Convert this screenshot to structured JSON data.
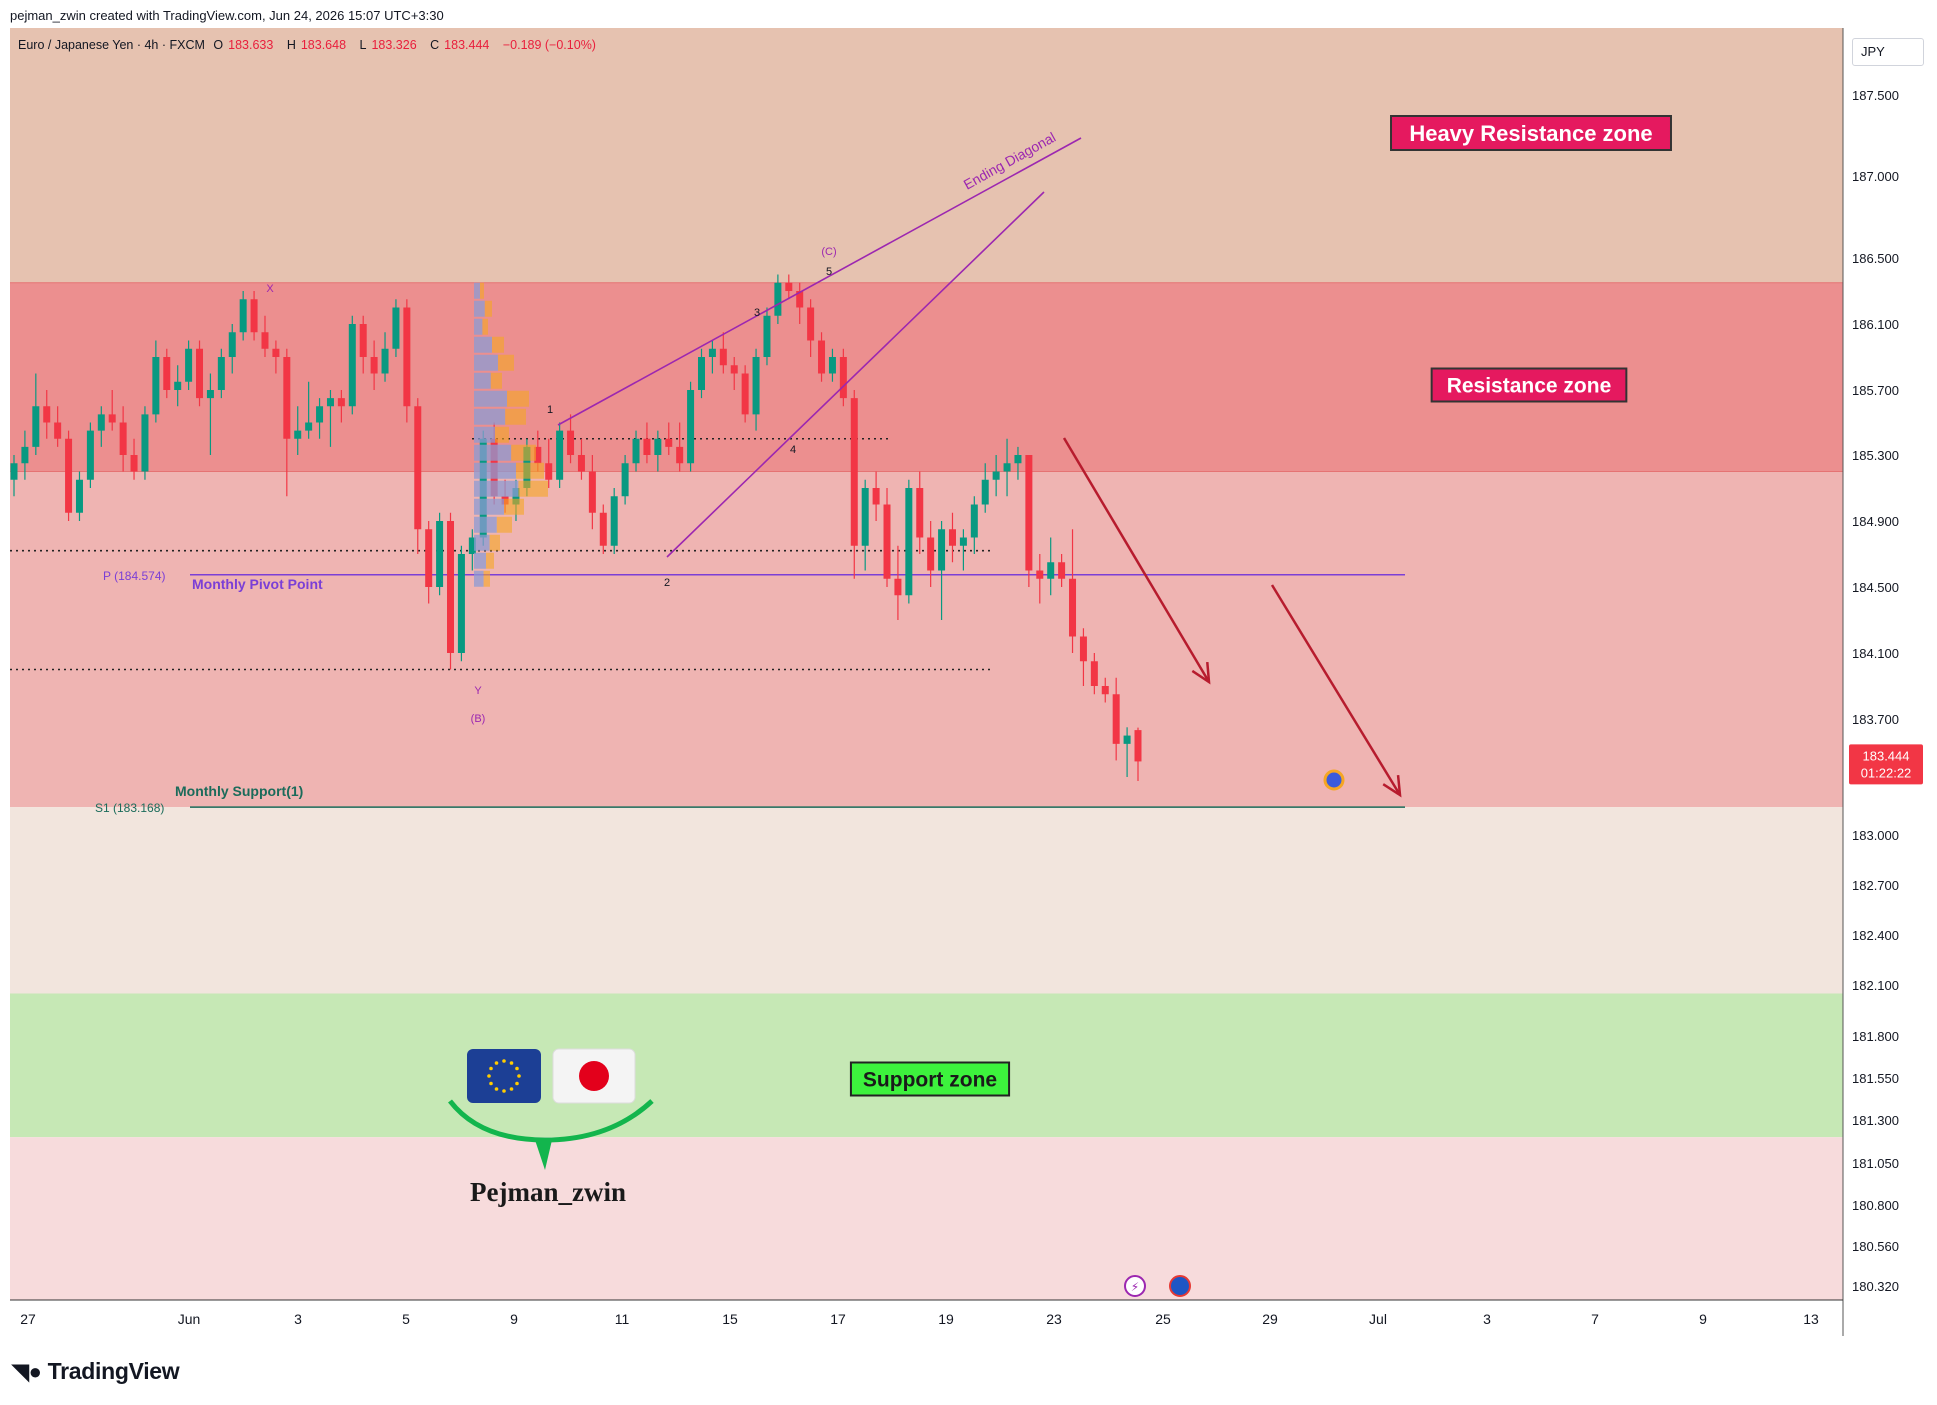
{
  "attribution": "pejman_zwin created with TradingView.com, Jun 24, 2026 15:07 UTC+3:30",
  "brand": "TradingView",
  "brand_icon": "tradingview-logo-icon",
  "symbol": {
    "name": "Euro / Japanese Yen · 4h · FXCM",
    "o_label": "O",
    "o": "183.633",
    "h_label": "H",
    "h": "183.648",
    "l_label": "L",
    "l": "183.326",
    "c_label": "C",
    "c": "183.444",
    "change": "−0.189 (−0.10%)"
  },
  "currency": "JPY",
  "colors": {
    "up": "#089981",
    "down": "#f23645",
    "pivot": "#7b3fd6",
    "support_line": "#1b6b5a",
    "arrow": "#b71c2e",
    "diagonal": "#9c27b0",
    "resistance_fill": "#ec8f8f",
    "heavy_resistance_fill": "#e6c2b0",
    "support_fill": "#c6e8b5"
  },
  "chart_data": {
    "type": "candlestick",
    "title": "Euro / Japanese Yen · 4h · FXCM",
    "timeframe": "4h",
    "y_axis": {
      "ticks": [
        "187.500",
        "187.000",
        "186.500",
        "186.100",
        "185.700",
        "185.300",
        "184.900",
        "184.500",
        "184.100",
        "183.700",
        "183.000",
        "182.700",
        "182.400",
        "182.100",
        "181.800",
        "181.550",
        "181.300",
        "181.050",
        "180.800",
        "180.560",
        "180.320"
      ],
      "range": [
        180.2,
        187.7
      ]
    },
    "x_axis": {
      "ticks": [
        "27",
        "Jun",
        "3",
        "5",
        "9",
        "11",
        "15",
        "17",
        "19",
        "23",
        "25",
        "29",
        "Jul",
        "3",
        "7",
        "9",
        "13"
      ]
    },
    "last_price": {
      "value": "183.444",
      "countdown": "01:22:22"
    },
    "zones": [
      {
        "label": "Heavy Resistance zone",
        "from": 186.35,
        "to": 187.9
      },
      {
        "label": "Resistance zone",
        "from": 185.2,
        "to": 186.35
      },
      {
        "label": "Support zone",
        "from": 181.2,
        "to": 182.05
      }
    ],
    "levels": [
      {
        "tag": "P (184.574)",
        "label": "Monthly Pivot Point",
        "value": 184.574
      },
      {
        "tag": "S1 (183.168)",
        "label": "Monthly Support(1)",
        "value": 183.168
      }
    ],
    "dotted_levels": [
      185.4,
      184.72,
      184.0
    ],
    "wave_labels": [
      {
        "text": "X",
        "price": 186.4
      },
      {
        "text": "Y",
        "price": 183.95
      },
      {
        "text": "(B)",
        "price": 183.75
      },
      {
        "text": "1",
        "price": 185.5
      },
      {
        "text": "2",
        "price": 184.5
      },
      {
        "text": "3",
        "price": 186.15
      },
      {
        "text": "4",
        "price": 185.3
      },
      {
        "text": "5",
        "price": 186.45
      },
      {
        "text": "(C)",
        "price": 186.55
      }
    ],
    "pattern_label": "Ending Diagonal",
    "candles": [
      {
        "o": 185.15,
        "h": 185.3,
        "l": 185.05,
        "c": 185.25
      },
      {
        "o": 185.25,
        "h": 185.45,
        "l": 185.15,
        "c": 185.35
      },
      {
        "o": 185.35,
        "h": 185.8,
        "l": 185.3,
        "c": 185.6
      },
      {
        "o": 185.6,
        "h": 185.7,
        "l": 185.4,
        "c": 185.5
      },
      {
        "o": 185.5,
        "h": 185.6,
        "l": 185.35,
        "c": 185.4
      },
      {
        "o": 185.4,
        "h": 185.45,
        "l": 184.9,
        "c": 184.95
      },
      {
        "o": 184.95,
        "h": 185.2,
        "l": 184.9,
        "c": 185.15
      },
      {
        "o": 185.15,
        "h": 185.5,
        "l": 185.1,
        "c": 185.45
      },
      {
        "o": 185.45,
        "h": 185.6,
        "l": 185.35,
        "c": 185.55
      },
      {
        "o": 185.55,
        "h": 185.7,
        "l": 185.45,
        "c": 185.5
      },
      {
        "o": 185.5,
        "h": 185.6,
        "l": 185.2,
        "c": 185.3
      },
      {
        "o": 185.3,
        "h": 185.4,
        "l": 185.15,
        "c": 185.2
      },
      {
        "o": 185.2,
        "h": 185.6,
        "l": 185.15,
        "c": 185.55
      },
      {
        "o": 185.55,
        "h": 186.0,
        "l": 185.5,
        "c": 185.9
      },
      {
        "o": 185.9,
        "h": 185.95,
        "l": 185.65,
        "c": 185.7
      },
      {
        "o": 185.7,
        "h": 185.85,
        "l": 185.6,
        "c": 185.75
      },
      {
        "o": 185.75,
        "h": 186.0,
        "l": 185.7,
        "c": 185.95
      },
      {
        "o": 185.95,
        "h": 186.0,
        "l": 185.6,
        "c": 185.65
      },
      {
        "o": 185.65,
        "h": 185.8,
        "l": 185.3,
        "c": 185.7
      },
      {
        "o": 185.7,
        "h": 185.95,
        "l": 185.65,
        "c": 185.9
      },
      {
        "o": 185.9,
        "h": 186.1,
        "l": 185.8,
        "c": 186.05
      },
      {
        "o": 186.05,
        "h": 186.3,
        "l": 186.0,
        "c": 186.25
      },
      {
        "o": 186.25,
        "h": 186.3,
        "l": 186.0,
        "c": 186.05
      },
      {
        "o": 186.05,
        "h": 186.15,
        "l": 185.9,
        "c": 185.95
      },
      {
        "o": 185.95,
        "h": 186.0,
        "l": 185.8,
        "c": 185.9
      },
      {
        "o": 185.9,
        "h": 185.95,
        "l": 185.05,
        "c": 185.4
      },
      {
        "o": 185.4,
        "h": 185.6,
        "l": 185.3,
        "c": 185.45
      },
      {
        "o": 185.45,
        "h": 185.75,
        "l": 185.4,
        "c": 185.5
      },
      {
        "o": 185.5,
        "h": 185.65,
        "l": 185.4,
        "c": 185.6
      },
      {
        "o": 185.6,
        "h": 185.7,
        "l": 185.35,
        "c": 185.65
      },
      {
        "o": 185.65,
        "h": 185.7,
        "l": 185.5,
        "c": 185.6
      },
      {
        "o": 185.6,
        "h": 186.15,
        "l": 185.55,
        "c": 186.1
      },
      {
        "o": 186.1,
        "h": 186.15,
        "l": 185.8,
        "c": 185.9
      },
      {
        "o": 185.9,
        "h": 186.0,
        "l": 185.7,
        "c": 185.8
      },
      {
        "o": 185.8,
        "h": 186.05,
        "l": 185.75,
        "c": 185.95
      },
      {
        "o": 185.95,
        "h": 186.25,
        "l": 185.9,
        "c": 186.2
      },
      {
        "o": 186.2,
        "h": 186.25,
        "l": 185.5,
        "c": 185.6
      },
      {
        "o": 185.6,
        "h": 185.65,
        "l": 184.7,
        "c": 184.85
      },
      {
        "o": 184.85,
        "h": 184.9,
        "l": 184.4,
        "c": 184.5
      },
      {
        "o": 184.5,
        "h": 184.95,
        "l": 184.45,
        "c": 184.9
      },
      {
        "o": 184.9,
        "h": 184.95,
        "l": 184.0,
        "c": 184.1
      },
      {
        "o": 184.1,
        "h": 184.75,
        "l": 184.05,
        "c": 184.7
      },
      {
        "o": 184.7,
        "h": 184.85,
        "l": 184.6,
        "c": 184.8
      },
      {
        "o": 184.8,
        "h": 185.45,
        "l": 184.75,
        "c": 185.4
      },
      {
        "o": 185.4,
        "h": 185.5,
        "l": 185.0,
        "c": 185.05
      },
      {
        "o": 185.05,
        "h": 185.15,
        "l": 184.95,
        "c": 185.0
      },
      {
        "o": 185.0,
        "h": 185.15,
        "l": 184.9,
        "c": 185.1
      },
      {
        "o": 185.1,
        "h": 185.4,
        "l": 185.05,
        "c": 185.35
      },
      {
        "o": 185.35,
        "h": 185.45,
        "l": 185.2,
        "c": 185.25
      },
      {
        "o": 185.25,
        "h": 185.4,
        "l": 185.1,
        "c": 185.15
      },
      {
        "o": 185.15,
        "h": 185.5,
        "l": 185.1,
        "c": 185.45
      },
      {
        "o": 185.45,
        "h": 185.55,
        "l": 185.25,
        "c": 185.3
      },
      {
        "o": 185.3,
        "h": 185.4,
        "l": 185.15,
        "c": 185.2
      },
      {
        "o": 185.2,
        "h": 185.3,
        "l": 184.85,
        "c": 184.95
      },
      {
        "o": 184.95,
        "h": 185.0,
        "l": 184.7,
        "c": 184.75
      },
      {
        "o": 184.75,
        "h": 185.1,
        "l": 184.7,
        "c": 185.05
      },
      {
        "o": 185.05,
        "h": 185.3,
        "l": 185.0,
        "c": 185.25
      },
      {
        "o": 185.25,
        "h": 185.45,
        "l": 185.2,
        "c": 185.4
      },
      {
        "o": 185.4,
        "h": 185.5,
        "l": 185.25,
        "c": 185.3
      },
      {
        "o": 185.3,
        "h": 185.45,
        "l": 185.2,
        "c": 185.4
      },
      {
        "o": 185.4,
        "h": 185.5,
        "l": 185.3,
        "c": 185.35
      },
      {
        "o": 185.35,
        "h": 185.5,
        "l": 185.2,
        "c": 185.25
      },
      {
        "o": 185.25,
        "h": 185.75,
        "l": 185.2,
        "c": 185.7
      },
      {
        "o": 185.7,
        "h": 185.95,
        "l": 185.65,
        "c": 185.9
      },
      {
        "o": 185.9,
        "h": 186.0,
        "l": 185.8,
        "c": 185.95
      },
      {
        "o": 185.95,
        "h": 186.05,
        "l": 185.8,
        "c": 185.85
      },
      {
        "o": 185.85,
        "h": 185.9,
        "l": 185.7,
        "c": 185.8
      },
      {
        "o": 185.8,
        "h": 185.85,
        "l": 185.5,
        "c": 185.55
      },
      {
        "o": 185.55,
        "h": 185.95,
        "l": 185.45,
        "c": 185.9
      },
      {
        "o": 185.9,
        "h": 186.2,
        "l": 185.85,
        "c": 186.15
      },
      {
        "o": 186.15,
        "h": 186.4,
        "l": 186.1,
        "c": 186.35
      },
      {
        "o": 186.35,
        "h": 186.4,
        "l": 186.25,
        "c": 186.3
      },
      {
        "o": 186.3,
        "h": 186.35,
        "l": 186.1,
        "c": 186.2
      },
      {
        "o": 186.2,
        "h": 186.25,
        "l": 185.9,
        "c": 186.0
      },
      {
        "o": 186.0,
        "h": 186.05,
        "l": 185.75,
        "c": 185.8
      },
      {
        "o": 185.8,
        "h": 185.95,
        "l": 185.75,
        "c": 185.9
      },
      {
        "o": 185.9,
        "h": 185.95,
        "l": 185.6,
        "c": 185.65
      },
      {
        "o": 185.65,
        "h": 185.7,
        "l": 184.55,
        "c": 184.75
      },
      {
        "o": 184.75,
        "h": 185.15,
        "l": 184.6,
        "c": 185.1
      },
      {
        "o": 185.1,
        "h": 185.2,
        "l": 184.9,
        "c": 185.0
      },
      {
        "o": 185.0,
        "h": 185.1,
        "l": 184.5,
        "c": 184.55
      },
      {
        "o": 184.55,
        "h": 184.75,
        "l": 184.3,
        "c": 184.45
      },
      {
        "o": 184.45,
        "h": 185.15,
        "l": 184.4,
        "c": 185.1
      },
      {
        "o": 185.1,
        "h": 185.2,
        "l": 184.7,
        "c": 184.8
      },
      {
        "o": 184.8,
        "h": 184.9,
        "l": 184.5,
        "c": 184.6
      },
      {
        "o": 184.6,
        "h": 184.9,
        "l": 184.3,
        "c": 184.85
      },
      {
        "o": 184.85,
        "h": 184.95,
        "l": 184.65,
        "c": 184.75
      },
      {
        "o": 184.75,
        "h": 184.85,
        "l": 184.6,
        "c": 184.8
      },
      {
        "o": 184.8,
        "h": 185.05,
        "l": 184.7,
        "c": 185.0
      },
      {
        "o": 185.0,
        "h": 185.25,
        "l": 184.95,
        "c": 185.15
      },
      {
        "o": 185.15,
        "h": 185.3,
        "l": 185.05,
        "c": 185.2
      },
      {
        "o": 185.2,
        "h": 185.4,
        "l": 185.05,
        "c": 185.25
      },
      {
        "o": 185.25,
        "h": 185.35,
        "l": 185.15,
        "c": 185.3
      },
      {
        "o": 185.3,
        "h": 185.3,
        "l": 184.5,
        "c": 184.6
      },
      {
        "o": 184.6,
        "h": 184.7,
        "l": 184.4,
        "c": 184.55
      },
      {
        "o": 184.55,
        "h": 184.8,
        "l": 184.45,
        "c": 184.65
      },
      {
        "o": 184.65,
        "h": 184.7,
        "l": 184.5,
        "c": 184.55
      },
      {
        "o": 184.55,
        "h": 184.85,
        "l": 184.1,
        "c": 184.2
      },
      {
        "o": 184.2,
        "h": 184.25,
        "l": 183.9,
        "c": 184.05
      },
      {
        "o": 184.05,
        "h": 184.1,
        "l": 183.85,
        "c": 183.9
      },
      {
        "o": 183.9,
        "h": 183.95,
        "l": 183.8,
        "c": 183.85
      },
      {
        "o": 183.85,
        "h": 183.95,
        "l": 183.45,
        "c": 183.55
      },
      {
        "o": 183.55,
        "h": 183.65,
        "l": 183.35,
        "c": 183.6
      },
      {
        "o": 183.633,
        "h": 183.648,
        "l": 183.326,
        "c": 183.444
      }
    ]
  },
  "annotations": {
    "heavy_resistance": "Heavy Resistance zone",
    "resistance": "Resistance zone",
    "support": "Support zone",
    "watermark": "Pejman_zwin"
  }
}
